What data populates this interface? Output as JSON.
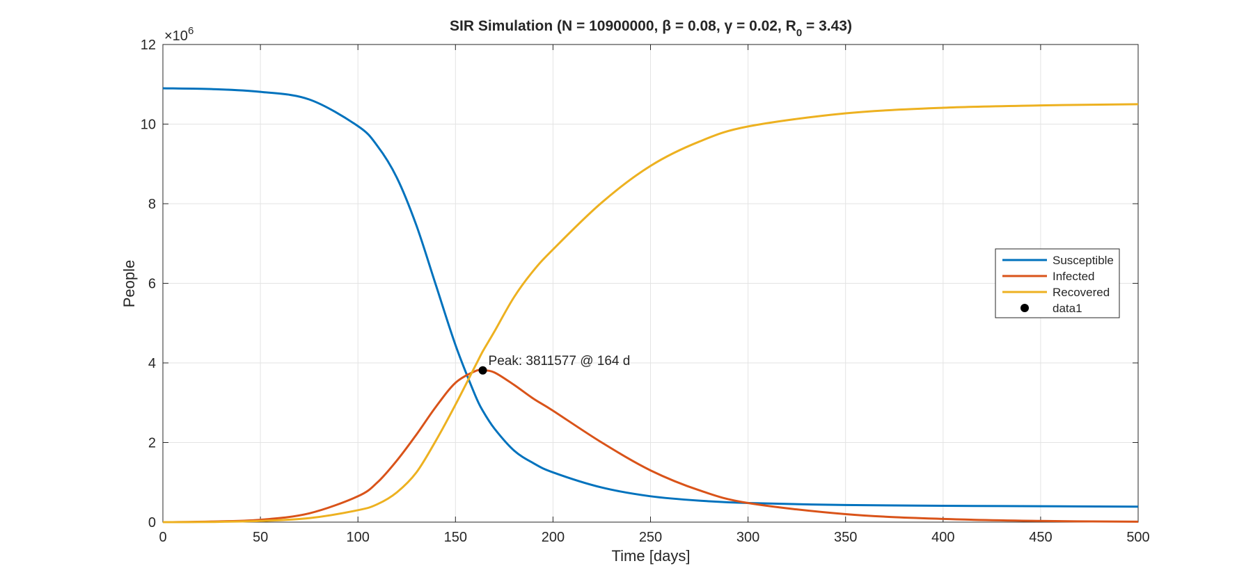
{
  "chart_data": {
    "type": "line",
    "title": "SIR Simulation (N = 10900000, β = 0.08, γ = 0.02, R",
    "title_sub": "0",
    "title_tail": " = 3.43)",
    "xlabel": "Time [days]",
    "ylabel": "People",
    "xlim": [
      0,
      500
    ],
    "ylim": [
      0,
      12000000
    ],
    "x_ticks": [
      0,
      50,
      100,
      150,
      200,
      250,
      300,
      350,
      400,
      450,
      500
    ],
    "x_tick_labels": [
      "0",
      "50",
      "100",
      "150",
      "200",
      "250",
      "300",
      "350",
      "400",
      "450",
      "500"
    ],
    "y_ticks": [
      0,
      2000000,
      4000000,
      6000000,
      8000000,
      10000000,
      12000000
    ],
    "y_tick_labels": [
      "0",
      "2",
      "4",
      "6",
      "8",
      "10",
      "12"
    ],
    "y_exponent_base": "×10",
    "y_exponent_power": "6",
    "grid": true,
    "legend_position": "right",
    "x": [
      0,
      25,
      50,
      75,
      100,
      110,
      120,
      130,
      140,
      150,
      160,
      164,
      170,
      180,
      190,
      200,
      225,
      250,
      275,
      300,
      350,
      400,
      450,
      500
    ],
    "series": [
      {
        "name": "Susceptible",
        "color": "#0072BD",
        "values": [
          10900000,
          10880000,
          10810000,
          10620000,
          9950000,
          9450000,
          8650000,
          7450000,
          5950000,
          4450000,
          3200000,
          2800000,
          2350000,
          1800000,
          1480000,
          1250000,
          870000,
          650000,
          540000,
          480000,
          430000,
          410000,
          400000,
          390000
        ]
      },
      {
        "name": "Infected",
        "color": "#D95319",
        "values": [
          10,
          15000,
          60000,
          220000,
          650000,
          1000000,
          1550000,
          2200000,
          2900000,
          3500000,
          3790000,
          3811577,
          3760000,
          3450000,
          3100000,
          2800000,
          2000000,
          1300000,
          800000,
          480000,
          200000,
          80000,
          30000,
          10000
        ]
      },
      {
        "name": "Recovered",
        "color": "#EDB120",
        "values": [
          0,
          5000,
          30000,
          100000,
          300000,
          450000,
          750000,
          1250000,
          2050000,
          2950000,
          3910000,
          4290000,
          4790000,
          5650000,
          6320000,
          6850000,
          8030000,
          8950000,
          9560000,
          9940000,
          10270000,
          10410000,
          10470000,
          10500000
        ]
      },
      {
        "name": "data1",
        "color": "#000000",
        "marker_only": true,
        "x": [
          164
        ],
        "values": [
          3811577
        ]
      }
    ],
    "annotations": [
      {
        "text": "Peak: 3811577 @ 164 d",
        "x": 164,
        "y": 3811577
      }
    ]
  }
}
